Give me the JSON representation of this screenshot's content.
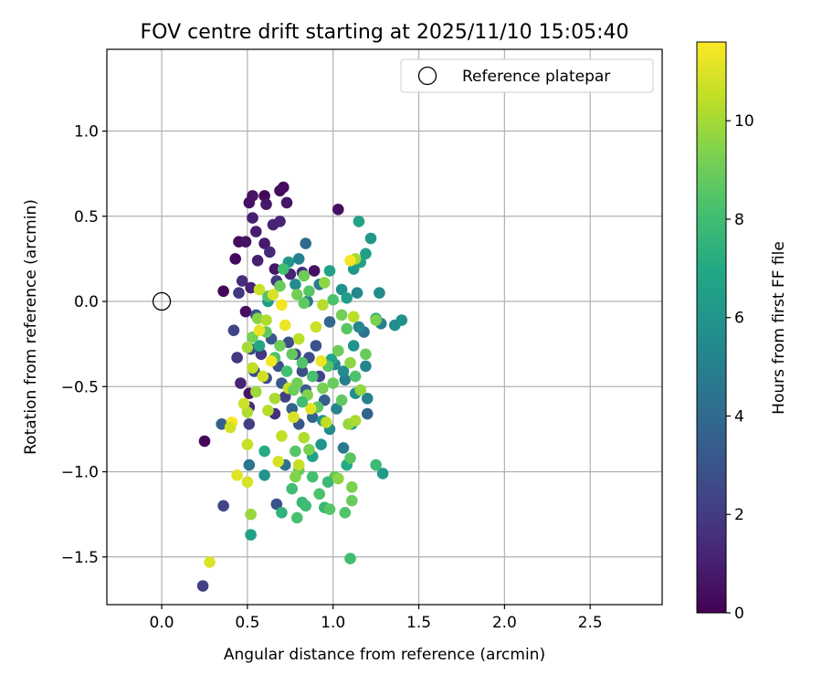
{
  "chart_data": {
    "type": "scatter",
    "title": "FOV centre drift starting at 2025/11/10 15:05:40",
    "xlabel": "Angular distance from reference (arcmin)",
    "ylabel": "Rotation from reference (arcmin)",
    "xlim": [
      -0.32,
      2.92
    ],
    "ylim": [
      -1.78,
      1.48
    ],
    "xticks": [
      0.0,
      0.5,
      1.0,
      1.5,
      2.0,
      2.5
    ],
    "xtick_labels": [
      "0.0",
      "0.5",
      "1.0",
      "1.5",
      "2.0",
      "2.5"
    ],
    "yticks": [
      1.0,
      0.5,
      0.0,
      -0.5,
      -1.0,
      -1.5
    ],
    "ytick_labels": [
      "1.0",
      "0.5",
      "0.0",
      "−0.5",
      "−1.0",
      "−1.5"
    ],
    "grid": true,
    "legend": {
      "placement": "upper right",
      "entries": [
        {
          "label": "Reference platepar",
          "marker": "open-circle"
        }
      ]
    },
    "reference_point": {
      "x": 0.0,
      "y": 0.0
    },
    "colorbar": {
      "label": "Hours from first FF file",
      "colormap": "viridis",
      "range": [
        0,
        11.6
      ],
      "ticks": [
        0,
        2,
        4,
        6,
        8,
        10
      ],
      "tick_labels": [
        "0",
        "2",
        "4",
        "6",
        "8",
        "10"
      ]
    },
    "series": [
      {
        "points": [
          [
            0.71,
            0.67,
            0.3
          ],
          [
            0.69,
            0.65,
            0.4
          ],
          [
            0.51,
            0.58,
            0.5
          ],
          [
            0.53,
            0.62,
            0.6
          ],
          [
            0.6,
            0.62,
            0.2
          ],
          [
            0.61,
            0.57,
            0.8
          ],
          [
            0.73,
            0.58,
            0.7
          ],
          [
            0.53,
            0.49,
            1.0
          ],
          [
            0.69,
            0.47,
            1.2
          ],
          [
            0.65,
            0.45,
            1.1
          ],
          [
            0.55,
            0.41,
            0.9
          ],
          [
            1.03,
            0.54,
            0.5
          ],
          [
            0.45,
            0.35,
            0.4
          ],
          [
            0.49,
            0.35,
            0.6
          ],
          [
            0.6,
            0.34,
            0.8
          ],
          [
            0.43,
            0.25,
            0.3
          ],
          [
            0.36,
            0.06,
            0.2
          ],
          [
            0.49,
            -0.06,
            0.4
          ],
          [
            0.63,
            0.29,
            1.3
          ],
          [
            0.56,
            0.24,
            1.0
          ],
          [
            0.66,
            0.19,
            0.7
          ],
          [
            0.47,
            0.12,
            1.5
          ],
          [
            0.75,
            0.16,
            1.2
          ],
          [
            0.82,
            0.17,
            1.6
          ],
          [
            0.89,
            0.18,
            0.5
          ],
          [
            0.45,
            0.05,
            1.8
          ],
          [
            0.52,
            0.08,
            1.1
          ],
          [
            0.67,
            0.12,
            2.0
          ],
          [
            0.25,
            -0.82,
            0.2
          ],
          [
            0.24,
            -1.67,
            2.2
          ],
          [
            0.36,
            -1.2,
            2.4
          ],
          [
            0.35,
            -0.72,
            3.5
          ],
          [
            0.51,
            -0.72,
            2.1
          ],
          [
            0.44,
            -0.33,
            1.8
          ],
          [
            0.42,
            -0.17,
            2.3
          ],
          [
            0.46,
            -0.48,
            1.2
          ],
          [
            0.51,
            -0.54,
            0.6
          ],
          [
            0.51,
            -0.62,
            1.4
          ],
          [
            0.52,
            -0.28,
            2.7
          ],
          [
            0.54,
            -0.41,
            2.5
          ],
          [
            0.55,
            -0.08,
            3.0
          ],
          [
            0.58,
            -0.31,
            1.9
          ],
          [
            0.61,
            -0.45,
            2.6
          ],
          [
            0.64,
            -0.22,
            3.2
          ],
          [
            0.66,
            -0.66,
            1.6
          ],
          [
            0.68,
            -0.38,
            2.9
          ],
          [
            0.7,
            -0.48,
            3.3
          ],
          [
            0.72,
            -0.56,
            2.2
          ],
          [
            0.74,
            -0.24,
            2.7
          ],
          [
            0.76,
            -0.63,
            3.6
          ],
          [
            0.78,
            -0.31,
            2.4
          ],
          [
            0.8,
            -0.72,
            3.1
          ],
          [
            0.82,
            -0.41,
            2.8
          ],
          [
            0.84,
            -0.52,
            3.4
          ],
          [
            0.86,
            -0.33,
            2.6
          ],
          [
            0.88,
            -0.68,
            3.7
          ],
          [
            0.9,
            -0.26,
            3.0
          ],
          [
            0.92,
            -0.44,
            2.3
          ],
          [
            0.95,
            -0.58,
            3.5
          ],
          [
            0.98,
            -0.12,
            3.9
          ],
          [
            0.67,
            -1.19,
            3.0
          ],
          [
            0.51,
            -0.96,
            4.5
          ],
          [
            0.72,
            -0.96,
            4.2
          ],
          [
            0.84,
            0.34,
            4.0
          ],
          [
            0.8,
            0.25,
            5.0
          ],
          [
            0.78,
            0.1,
            5.5
          ],
          [
            0.85,
            0.0,
            4.6
          ],
          [
            0.74,
            0.23,
            6.1
          ],
          [
            0.92,
            0.1,
            4.8
          ],
          [
            1.2,
            -0.66,
            3.7
          ],
          [
            1.18,
            -0.18,
            4.4
          ],
          [
            1.28,
            -0.13,
            5.0
          ],
          [
            1.22,
            0.37,
            6.1
          ],
          [
            1.15,
            0.47,
            6.7
          ],
          [
            1.19,
            0.28,
            6.5
          ],
          [
            1.12,
            0.19,
            6.2
          ],
          [
            1.05,
            0.07,
            5.8
          ],
          [
            0.98,
            0.18,
            6.6
          ],
          [
            1.08,
            0.02,
            6.4
          ],
          [
            1.15,
            -0.15,
            5.4
          ],
          [
            1.12,
            -0.26,
            6.0
          ],
          [
            1.01,
            -0.37,
            5.3
          ],
          [
            1.07,
            -0.46,
            4.9
          ],
          [
            1.13,
            -0.54,
            5.7
          ],
          [
            1.2,
            -0.57,
            5.1
          ],
          [
            1.02,
            -0.63,
            5.2
          ],
          [
            1.11,
            -0.72,
            6.3
          ],
          [
            1.06,
            -0.86,
            4.7
          ],
          [
            1.08,
            -0.96,
            7.0
          ],
          [
            0.98,
            -0.75,
            5.6
          ],
          [
            0.93,
            -0.84,
            6.0
          ],
          [
            0.88,
            -0.91,
            6.6
          ],
          [
            0.94,
            -0.7,
            5.9
          ],
          [
            0.99,
            -0.34,
            6.8
          ],
          [
            1.16,
            0.23,
            6.5
          ],
          [
            1.29,
            -1.01,
            6.2
          ],
          [
            1.4,
            -0.11,
            5.8
          ],
          [
            1.36,
            -0.14,
            5.6
          ],
          [
            1.25,
            -0.1,
            7.2
          ],
          [
            1.27,
            0.05,
            5.5
          ],
          [
            1.14,
            0.05,
            5.4
          ],
          [
            1.19,
            -0.38,
            5.2
          ],
          [
            1.06,
            -0.41,
            5.5
          ],
          [
            0.52,
            -1.37,
            6.6
          ],
          [
            0.6,
            -1.02,
            6.0
          ],
          [
            0.62,
            0.0,
            6.4
          ],
          [
            0.57,
            -0.26,
            6.9
          ],
          [
            0.6,
            -0.88,
            7.1
          ],
          [
            0.82,
            -1.18,
            7.7
          ],
          [
            0.7,
            -1.24,
            7.5
          ],
          [
            0.76,
            -1.1,
            8.0
          ],
          [
            0.84,
            -1.2,
            7.9
          ],
          [
            0.92,
            -1.13,
            8.3
          ],
          [
            0.95,
            -1.21,
            7.7
          ],
          [
            0.98,
            -1.22,
            8.5
          ],
          [
            1.01,
            -1.03,
            8.8
          ],
          [
            0.97,
            -1.06,
            7.8
          ],
          [
            0.88,
            -1.03,
            8.1
          ],
          [
            0.79,
            -1.27,
            8.2
          ],
          [
            1.1,
            -1.51,
            8.0
          ],
          [
            1.07,
            -1.24,
            8.4
          ],
          [
            1.1,
            -0.92,
            8.6
          ],
          [
            1.25,
            -0.96,
            7.8
          ],
          [
            0.8,
            -0.99,
            8.8
          ],
          [
            0.86,
            -0.87,
            9.2
          ],
          [
            0.78,
            -0.88,
            8.5
          ],
          [
            1.11,
            -1.09,
            9.3
          ],
          [
            1.11,
            -1.17,
            8.9
          ],
          [
            1.03,
            -1.04,
            9.6
          ],
          [
            0.78,
            -1.03,
            9.4
          ],
          [
            0.79,
            0.04,
            9.1
          ],
          [
            0.83,
            -0.01,
            8.7
          ],
          [
            0.86,
            0.06,
            8.5
          ],
          [
            0.83,
            0.15,
            9.0
          ],
          [
            0.69,
            0.09,
            8.9
          ],
          [
            0.71,
            0.19,
            8.1
          ],
          [
            0.62,
            0.03,
            8.4
          ],
          [
            0.56,
            -0.1,
            9.5
          ],
          [
            0.53,
            -0.21,
            9.2
          ],
          [
            0.61,
            -0.18,
            8.7
          ],
          [
            0.66,
            -0.33,
            8.3
          ],
          [
            0.69,
            -0.26,
            9.0
          ],
          [
            0.73,
            -0.41,
            8.1
          ],
          [
            0.76,
            -0.31,
            8.8
          ],
          [
            0.79,
            -0.48,
            9.1
          ],
          [
            0.82,
            -0.36,
            8.4
          ],
          [
            0.85,
            -0.55,
            9.4
          ],
          [
            0.88,
            -0.44,
            8.2
          ],
          [
            0.91,
            -0.62,
            8.6
          ],
          [
            0.94,
            -0.51,
            9.2
          ],
          [
            0.97,
            -0.38,
            8.5
          ],
          [
            1.0,
            -0.48,
            8.9
          ],
          [
            1.03,
            -0.29,
            9.0
          ],
          [
            1.05,
            -0.58,
            8.7
          ],
          [
            1.08,
            -0.16,
            8.6
          ],
          [
            1.1,
            -0.36,
            9.6
          ],
          [
            1.13,
            -0.44,
            8.3
          ],
          [
            1.16,
            -0.52,
            9.7
          ],
          [
            1.19,
            -0.31,
            8.9
          ],
          [
            1.09,
            -0.72,
            9.8
          ],
          [
            1.13,
            -0.7,
            10.1
          ],
          [
            1.05,
            -0.08,
            9.1
          ],
          [
            0.94,
            -0.02,
            10.3
          ],
          [
            1.0,
            0.01,
            8.3
          ],
          [
            0.95,
            0.11,
            9.6
          ],
          [
            1.13,
            0.25,
            10.0
          ],
          [
            1.12,
            -0.09,
            10.4
          ],
          [
            1.25,
            -0.11,
            9.3
          ],
          [
            0.5,
            -0.65,
            10.2
          ],
          [
            0.5,
            -0.84,
            10.6
          ],
          [
            0.52,
            -1.25,
            9.8
          ],
          [
            0.5,
            -1.06,
            10.9
          ],
          [
            0.44,
            -1.02,
            11.1
          ],
          [
            0.41,
            -0.71,
            11.5
          ],
          [
            0.48,
            -0.6,
            10.7
          ],
          [
            0.5,
            -0.27,
            10.0
          ],
          [
            0.53,
            -0.39,
            10.5
          ],
          [
            0.55,
            -0.53,
            9.9
          ],
          [
            0.57,
            -0.17,
            11.2
          ],
          [
            0.59,
            -0.44,
            10.8
          ],
          [
            0.62,
            -0.64,
            10.3
          ],
          [
            0.64,
            -0.35,
            11.4
          ],
          [
            0.66,
            -0.57,
            10.1
          ],
          [
            0.68,
            -0.94,
            10.9
          ],
          [
            0.7,
            -0.79,
            10.5
          ],
          [
            0.72,
            -0.14,
            11.3
          ],
          [
            0.74,
            -0.51,
            10.6
          ],
          [
            0.77,
            -0.68,
            11.0
          ],
          [
            0.8,
            -0.22,
            10.4
          ],
          [
            0.83,
            -0.8,
            10.2
          ],
          [
            0.87,
            -0.63,
            11.1
          ],
          [
            0.9,
            -0.15,
            10.7
          ],
          [
            0.93,
            -0.35,
            11.3
          ],
          [
            0.96,
            -0.71,
            10.5
          ],
          [
            0.57,
            0.07,
            10.7
          ],
          [
            0.65,
            0.04,
            10.9
          ],
          [
            0.7,
            -0.02,
            11.4
          ],
          [
            0.61,
            -0.11,
            10.2
          ],
          [
            0.28,
            -1.53,
            11.0
          ],
          [
            0.4,
            -0.74,
            10.8
          ],
          [
            0.8,
            -0.96,
            10.6
          ],
          [
            1.1,
            0.24,
            11.5
          ],
          [
            0.77,
            -0.52,
            9.0
          ],
          [
            0.82,
            -0.59,
            8.0
          ]
        ]
      }
    ]
  }
}
